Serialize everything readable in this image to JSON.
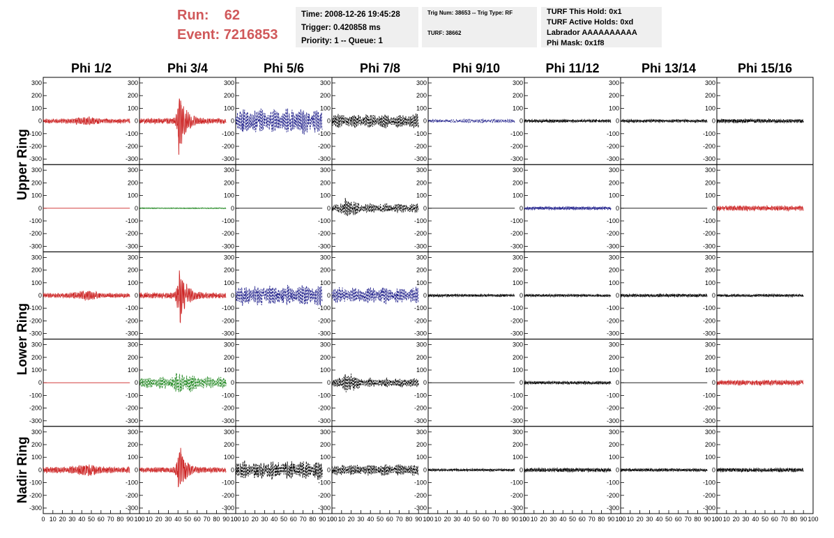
{
  "run": {
    "run_label": "Run:",
    "run_value": "62",
    "event_label": "Event:",
    "event_value": "7216853"
  },
  "info_box_1": {
    "line1": "Time: 2008-12-26 19:45:28",
    "line2": "Trigger: 0.420858 ms",
    "line3": "Priority: 1 -- Queue: 1"
  },
  "info_box_2": {
    "line1": "Trig Num: 38653 -- Trig Type: RF",
    "line2": "TURF: 38662"
  },
  "info_box_3": {
    "line1": "TURF This Hold: 0x1",
    "line2": "TURF Active Holds: 0xd",
    "line3": "Labrador AAAAAAAAAA",
    "line4": "Phi Mask: 0x1f8"
  },
  "chart_data": {
    "type": "line",
    "columns": [
      "Phi 1/2",
      "Phi 3/4",
      "Phi 5/6",
      "Phi 7/8",
      "Phi 9/10",
      "Phi 11/12",
      "Phi 13/14",
      "Phi 15/16"
    ],
    "ring_labels": [
      "Upper Ring",
      "Lower Ring",
      "Nadir Ring"
    ],
    "xlim": [
      0,
      100
    ],
    "ylim": [
      -300,
      300
    ],
    "x_ticks": [
      0,
      10,
      20,
      30,
      40,
      50,
      60,
      70,
      80,
      90,
      100
    ],
    "y_ticks": [
      -300,
      -200,
      -100,
      0,
      100,
      200,
      300
    ],
    "colors": {
      "red": "#cc2222",
      "green": "#228822",
      "blue": "#22228c",
      "black": "#000000"
    },
    "panels": [
      [
        {
          "color": "red",
          "amp": 18,
          "peak": 55,
          "burst": 0,
          "dashed": false
        },
        {
          "color": "red",
          "amp": 22,
          "peak": 280,
          "burst": 41,
          "dashed": false
        },
        {
          "color": "blue",
          "amp": 110,
          "peak": 0,
          "burst": 0,
          "dashed": true
        },
        {
          "color": "black",
          "amp": 60,
          "peak": 0,
          "burst": 0,
          "dashed": true
        },
        {
          "color": "blue",
          "amp": 15,
          "peak": 0,
          "burst": 0,
          "dashed": true
        },
        {
          "color": "black",
          "amp": 12,
          "peak": 0,
          "burst": 0,
          "dashed": false
        },
        {
          "color": "black",
          "amp": 12,
          "peak": 0,
          "burst": 0,
          "dashed": false
        },
        {
          "color": "black",
          "amp": 15,
          "peak": 0,
          "burst": 0,
          "dashed": false
        }
      ],
      [
        {
          "color": "red",
          "amp": 0,
          "peak": 0,
          "burst": 0,
          "dashed": false
        },
        {
          "color": "green",
          "amp": 4,
          "peak": 0,
          "burst": 0,
          "dashed": false
        },
        {
          "color": "black",
          "amp": 0,
          "peak": 0,
          "burst": 0,
          "dashed": false
        },
        {
          "color": "black",
          "amp": 40,
          "peak": 95,
          "burst": 14,
          "dashed": true
        },
        {
          "color": "black",
          "amp": 0,
          "peak": 0,
          "burst": 0,
          "dashed": false
        },
        {
          "color": "blue",
          "amp": 12,
          "peak": 0,
          "burst": 0,
          "dashed": false
        },
        {
          "color": "black",
          "amp": 0,
          "peak": 0,
          "burst": 0,
          "dashed": false
        },
        {
          "color": "red",
          "amp": 20,
          "peak": 0,
          "burst": 0,
          "dashed": false
        }
      ],
      [
        {
          "color": "red",
          "amp": 18,
          "peak": 65,
          "burst": 0,
          "dashed": false
        },
        {
          "color": "red",
          "amp": 22,
          "peak": 280,
          "burst": 41,
          "dashed": false
        },
        {
          "color": "blue",
          "amp": 90,
          "peak": 0,
          "burst": 0,
          "dashed": true
        },
        {
          "color": "blue",
          "amp": 70,
          "peak": 0,
          "burst": 0,
          "dashed": true
        },
        {
          "color": "black",
          "amp": 10,
          "peak": 0,
          "burst": 0,
          "dashed": false
        },
        {
          "color": "black",
          "amp": 10,
          "peak": 0,
          "burst": 0,
          "dashed": false
        },
        {
          "color": "black",
          "amp": 12,
          "peak": 0,
          "burst": 0,
          "dashed": false
        },
        {
          "color": "black",
          "amp": 10,
          "peak": 0,
          "burst": 0,
          "dashed": false
        }
      ],
      [
        {
          "color": "red",
          "amp": 0,
          "peak": 0,
          "burst": 0,
          "dashed": false
        },
        {
          "color": "green",
          "amp": 50,
          "peak": 120,
          "burst": 0,
          "dashed": true
        },
        {
          "color": "black",
          "amp": 0,
          "peak": 0,
          "burst": 0,
          "dashed": false
        },
        {
          "color": "black",
          "amp": 40,
          "peak": 110,
          "burst": 14,
          "dashed": true
        },
        {
          "color": "black",
          "amp": 0,
          "peak": 0,
          "burst": 0,
          "dashed": false
        },
        {
          "color": "black",
          "amp": 12,
          "peak": 0,
          "burst": 0,
          "dashed": false
        },
        {
          "color": "black",
          "amp": 0,
          "peak": 0,
          "burst": 0,
          "dashed": false
        },
        {
          "color": "red",
          "amp": 20,
          "peak": 0,
          "burst": 0,
          "dashed": false
        }
      ],
      [
        {
          "color": "red",
          "amp": 25,
          "peak": 70,
          "burst": 0,
          "dashed": false
        },
        {
          "color": "red",
          "amp": 20,
          "peak": 210,
          "burst": 41,
          "dashed": false
        },
        {
          "color": "black",
          "amp": 80,
          "peak": 0,
          "burst": 0,
          "dashed": true
        },
        {
          "color": "black",
          "amp": 50,
          "peak": 0,
          "burst": 0,
          "dashed": true
        },
        {
          "color": "black",
          "amp": 10,
          "peak": 0,
          "burst": 0,
          "dashed": false
        },
        {
          "color": "black",
          "amp": 15,
          "peak": 0,
          "burst": 0,
          "dashed": false
        },
        {
          "color": "black",
          "amp": 12,
          "peak": 0,
          "burst": 0,
          "dashed": false
        },
        {
          "color": "black",
          "amp": 15,
          "peak": 0,
          "burst": 0,
          "dashed": false
        }
      ]
    ]
  }
}
